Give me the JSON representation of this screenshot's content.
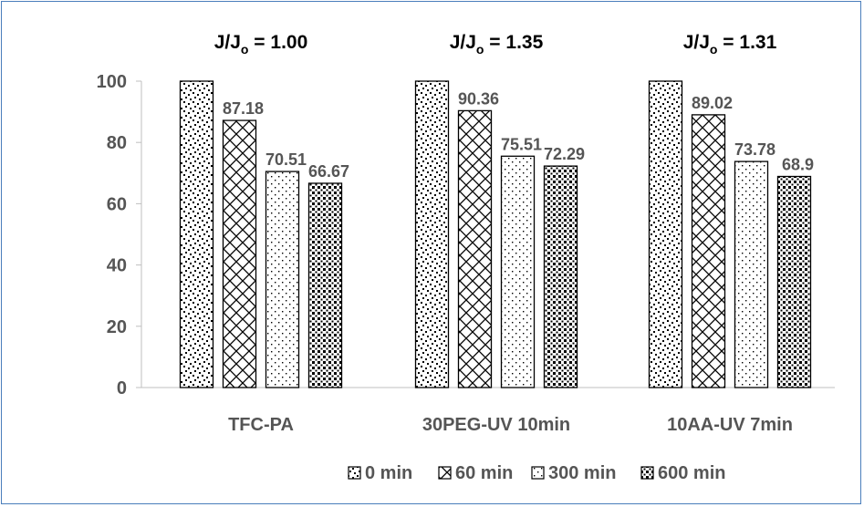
{
  "chart_data": {
    "type": "bar",
    "categories": [
      "TFC-PA",
      "30PEG-UV 10min",
      "10AA-UV 7min"
    ],
    "series": [
      {
        "name": "0 min",
        "values": [
          100,
          100,
          100
        ],
        "pattern": "diagonal-dots"
      },
      {
        "name": "60 min",
        "values": [
          87.18,
          90.36,
          89.02
        ],
        "pattern": "crosshatch"
      },
      {
        "name": "300 min",
        "values": [
          70.51,
          75.51,
          73.78
        ],
        "pattern": "sparse-dots"
      },
      {
        "name": "600 min",
        "values": [
          66.67,
          72.29,
          68.9
        ],
        "pattern": "dense-squares"
      }
    ],
    "data_labels": [
      [
        null,
        "87.18",
        "70.51",
        "66.67"
      ],
      [
        null,
        "90.36",
        "75.51",
        "72.29"
      ],
      [
        null,
        "89.02",
        "73.78",
        "68.9"
      ]
    ],
    "annotations": [
      {
        "base": "J/J",
        "sub": "o",
        "rest": " = 1.00"
      },
      {
        "base": "J/J",
        "sub": "o",
        "rest": " = 1.35"
      },
      {
        "base": "J/J",
        "sub": "o",
        "rest": " = 1.31"
      }
    ],
    "yticks": [
      0,
      20,
      40,
      60,
      80,
      100
    ],
    "ylim": [
      0,
      100
    ],
    "grid": false,
    "legend_position": "bottom",
    "colors": {
      "bar_stroke": "#000000",
      "pattern_fill": "#000000",
      "text": "#555555",
      "axis": "#bfbfbf",
      "frame": "#4a7ebb"
    }
  }
}
